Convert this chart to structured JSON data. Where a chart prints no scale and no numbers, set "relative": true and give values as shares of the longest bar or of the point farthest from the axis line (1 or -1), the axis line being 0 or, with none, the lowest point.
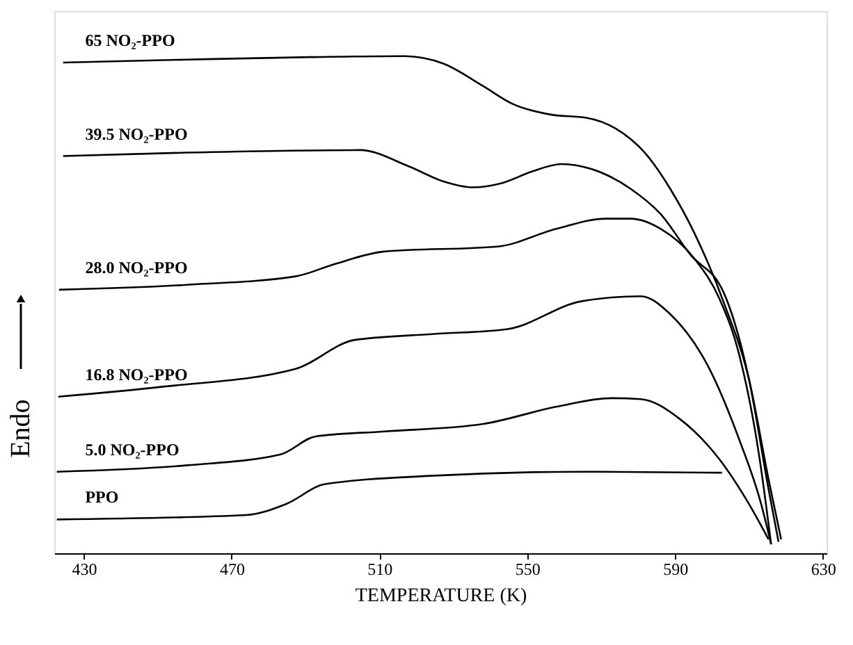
{
  "chart_data": {
    "type": "line",
    "relative": true,
    "xlabel": "TEMPERATURE    (K)",
    "ylabel": "Endo",
    "xlim": [
      422,
      631
    ],
    "xticks": [
      430,
      470,
      510,
      550,
      590,
      630
    ],
    "grid": false,
    "marker": "none",
    "line_style": "solid",
    "series": [
      {
        "name": "65 NO₂-PPO",
        "color": "#000000",
        "x": [
          424.4,
          458,
          491.3,
          516.7,
          527.3,
          538,
          546,
          556.7,
          566,
          574,
          582,
          588.7,
          595.3,
          603.3,
          610,
          615.3,
          618.7
        ],
        "values": [
          0.987,
          0.993,
          0.998,
          1,
          0.985,
          0.94,
          0.904,
          0.882,
          0.876,
          0.854,
          0.804,
          0.733,
          0.643,
          0.502,
          0.35,
          0.149,
          0.028
        ]
      },
      {
        "name": "39.5 NO₂-PPO",
        "color": "#000000",
        "x": [
          424.4,
          458,
          504.7,
          518,
          527.3,
          535.3,
          543.3,
          551.3,
          559.3,
          567.3,
          578,
          586,
          594,
          603.3,
          610,
          615.3,
          618
        ],
        "values": [
          0.799,
          0.806,
          0.811,
          0.778,
          0.748,
          0.736,
          0.745,
          0.768,
          0.783,
          0.773,
          0.733,
          0.683,
          0.602,
          0.522,
          0.35,
          0.129,
          0.023
        ]
      },
      {
        "name": "28.0 NO₂-PPO",
        "color": "#000000",
        "x": [
          423.3,
          458,
          487.3,
          498,
          511.3,
          542,
          558,
          571.3,
          578,
          586,
          595.3,
          602,
          607.3,
          612.7,
          616
        ],
        "values": [
          0.53,
          0.54,
          0.557,
          0.582,
          0.607,
          0.617,
          0.653,
          0.673,
          0.673,
          0.653,
          0.592,
          0.512,
          0.401,
          0.199,
          0.018
        ]
      },
      {
        "name": "16.8 NO₂-PPO",
        "color": "#000000",
        "x": [
          423.1,
          451.3,
          487.3,
          503.3,
          524.7,
          544.7,
          564.7,
          580.7,
          588.7,
          599.3,
          607.3,
          613.3,
          616
        ],
        "values": [
          0.315,
          0.335,
          0.371,
          0.429,
          0.441,
          0.451,
          0.507,
          0.517,
          0.481,
          0.371,
          0.23,
          0.099,
          0.018
        ]
      },
      {
        "name": "5.0 NO₂-PPO",
        "color": "#000000",
        "x": [
          422.7,
          458,
          483.3,
          492.7,
          511.3,
          538,
          558,
          572.7,
          580.7,
          591.3,
          602,
          610,
          615.3
        ],
        "values": [
          0.164,
          0.177,
          0.199,
          0.235,
          0.245,
          0.26,
          0.295,
          0.312,
          0.31,
          0.27,
          0.189,
          0.099,
          0.028
        ]
      },
      {
        "name": "PPO",
        "color": "#000000",
        "x": [
          422.7,
          474,
          484.7,
          495.3,
          524.7,
          564.7,
          602.7
        ],
        "values": [
          0.068,
          0.077,
          0.099,
          0.139,
          0.156,
          0.164,
          0.162
        ]
      }
    ]
  }
}
